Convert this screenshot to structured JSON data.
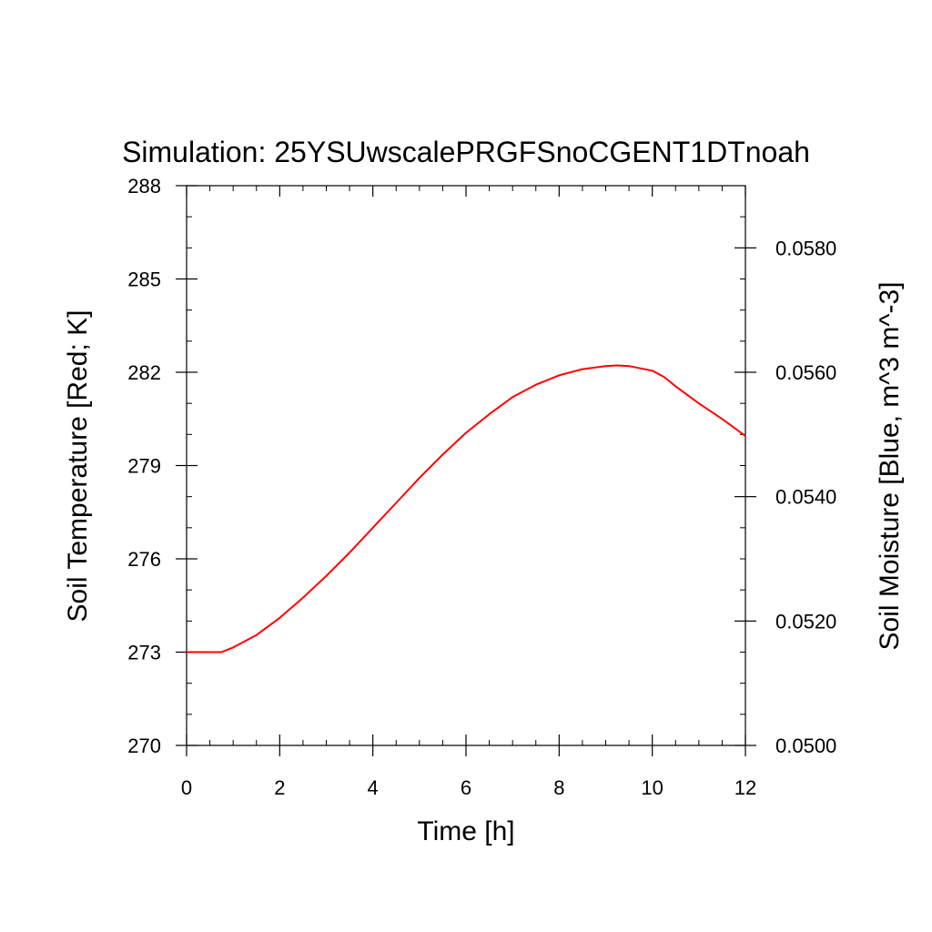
{
  "chart_data": {
    "type": "line",
    "title": "Simulation: 25YSUwscalePRGFSnoCGENT1DTnoah",
    "xlabel": "Time [h]",
    "ylabel_left": "Soil Temperature [Red; K]",
    "ylabel_right": "Soil Moisture [Blue, m^3 m^-3]",
    "xlim": [
      0,
      12
    ],
    "ylim_left": [
      270,
      288
    ],
    "ylim_right": [
      0.05,
      0.059
    ],
    "x_ticks": [
      "0",
      "2",
      "4",
      "6",
      "8",
      "10",
      "12"
    ],
    "y_left_ticks": [
      "270",
      "273",
      "276",
      "279",
      "282",
      "285",
      "288"
    ],
    "y_right_ticks": [
      "0.0500",
      "0.0520",
      "0.0540",
      "0.0560",
      "0.0580"
    ],
    "grid": false,
    "series": [
      {
        "axis": "left",
        "color": "#ff0000",
        "x": [
          0,
          0.25,
          0.5,
          0.75,
          1.0,
          1.5,
          2.0,
          2.5,
          3.0,
          3.5,
          4.0,
          4.5,
          5.0,
          5.5,
          6.0,
          6.5,
          7.0,
          7.5,
          8.0,
          8.5,
          9.0,
          9.25,
          9.5,
          10.0,
          10.25,
          10.5,
          11.0,
          11.5,
          12.0
        ],
        "y": [
          273.0,
          273.0,
          273.0,
          273.0,
          273.15,
          273.55,
          274.1,
          274.75,
          275.45,
          276.2,
          277.0,
          277.8,
          278.6,
          279.35,
          280.05,
          280.65,
          281.2,
          281.6,
          281.9,
          282.1,
          282.2,
          282.22,
          282.2,
          282.05,
          281.85,
          281.55,
          281.0,
          280.5,
          279.95
        ]
      }
    ]
  }
}
